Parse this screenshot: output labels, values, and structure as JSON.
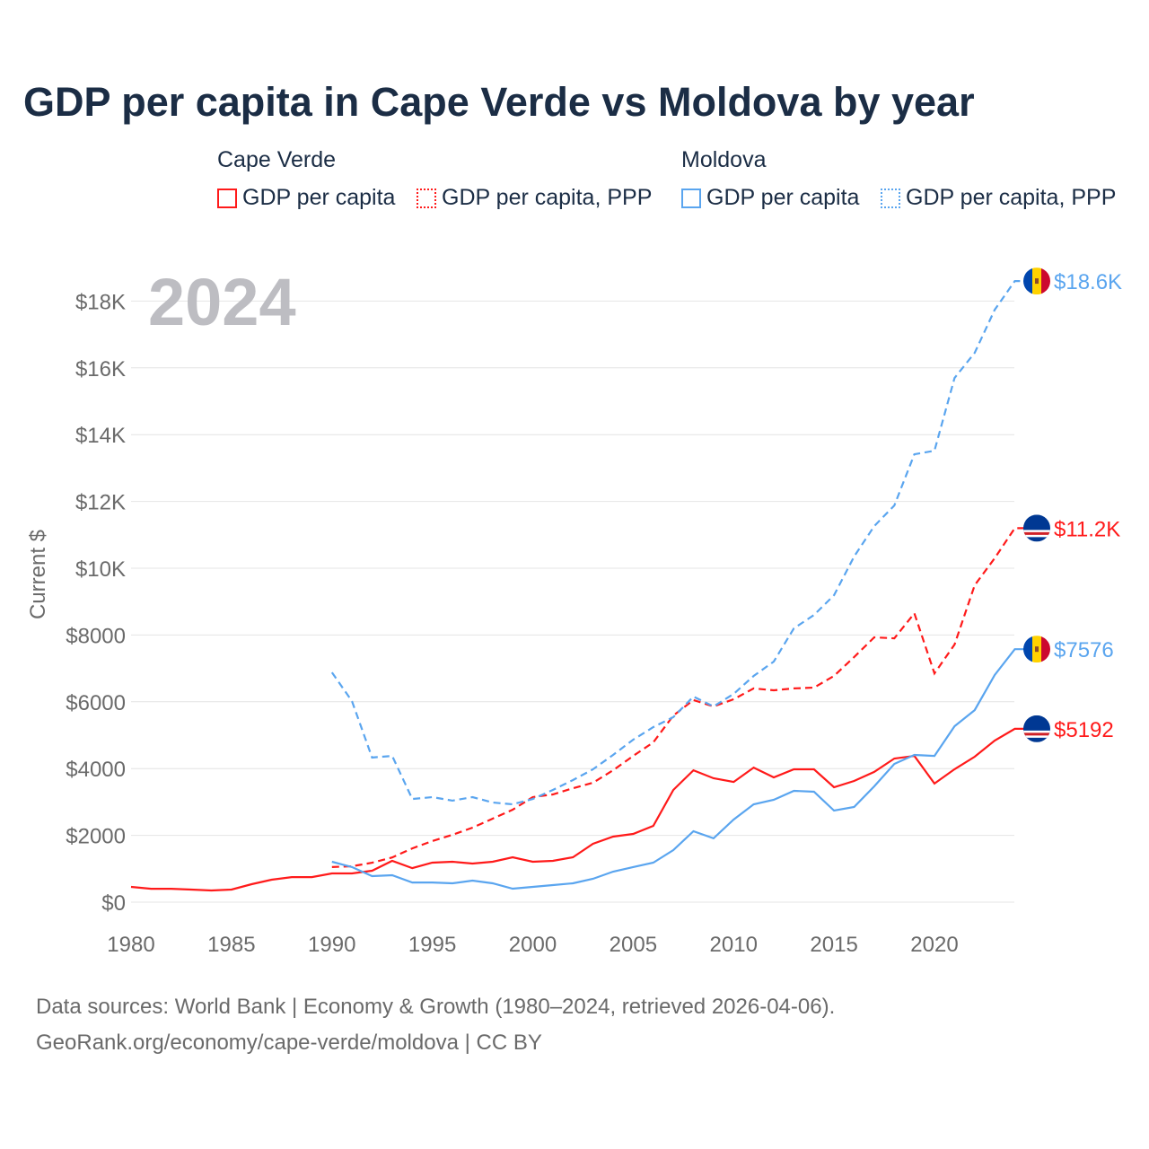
{
  "title": "GDP per capita in Cape Verde vs Moldova by year",
  "legend": {
    "groups": [
      {
        "name": "Cape Verde"
      },
      {
        "name": "Moldova"
      }
    ],
    "items": [
      {
        "label": "GDP per capita",
        "color": "#ff1a1a",
        "style": "solid"
      },
      {
        "label": "GDP per capita, PPP",
        "color": "#ff1a1a",
        "style": "dotted"
      },
      {
        "label": "GDP per capita",
        "color": "#5aa5ef",
        "style": "solid"
      },
      {
        "label": "GDP per capita, PPP",
        "color": "#5aa5ef",
        "style": "dotted"
      }
    ]
  },
  "source_line1": "Data sources: World Bank | Economy & Growth (1980–2024, retrieved 2026-04-06).",
  "source_line2": "GeoRank.org/economy/cape-verde/moldova | CC BY",
  "chart_data": {
    "type": "line",
    "title": "GDP per capita in Cape Verde vs Moldova by year",
    "year_label": "2024",
    "ylabel": "Current $",
    "xlabel": "",
    "xlim": [
      1980,
      2024
    ],
    "ylim": [
      0,
      18600
    ],
    "xticks": [
      1980,
      1985,
      1990,
      1995,
      2000,
      2005,
      2010,
      2015,
      2020
    ],
    "xtick_labels": [
      "1980",
      "1985",
      "1990",
      "1995",
      "2000",
      "2005",
      "2010",
      "2015",
      "2020"
    ],
    "yticks": [
      0,
      2000,
      4000,
      6000,
      8000,
      10000,
      12000,
      14000,
      16000,
      18000
    ],
    "ytick_labels": [
      "$0",
      "$2000",
      "$4000",
      "$6000",
      "$8000",
      "$10K",
      "$12K",
      "$14K",
      "$16K",
      "$18K"
    ],
    "grid": true,
    "series": [
      {
        "name": "Cape Verde GDP per capita",
        "country": "Cape Verde",
        "color": "#ff1a1a",
        "dash": false,
        "start": 1980,
        "end_label": "$5192",
        "values": [
          457,
          400,
          400,
          376,
          350,
          376,
          537,
          672,
          750,
          750,
          860,
          860,
          940,
          1236,
          1020,
          1183,
          1210,
          1156,
          1210,
          1344,
          1210,
          1236,
          1344,
          1747,
          1962,
          2043,
          2285,
          3360,
          3950,
          3710,
          3600,
          4030,
          3737,
          3978,
          3978,
          3440,
          3630,
          3900,
          4300,
          4380,
          3550,
          3980,
          4355,
          4840,
          5192
        ]
      },
      {
        "name": "Cape Verde GDP per capita, PPP",
        "country": "Cape Verde",
        "color": "#ff1a1a",
        "dash": true,
        "start": 1990,
        "end_label": "$11.2K",
        "values": [
          1050,
          1075,
          1180,
          1340,
          1610,
          1830,
          2016,
          2230,
          2500,
          2770,
          3145,
          3225,
          3410,
          3575,
          3950,
          4380,
          4785,
          5590,
          6050,
          5860,
          6075,
          6400,
          6344,
          6400,
          6425,
          6775,
          7340,
          7930,
          7900,
          8650,
          6850,
          7715,
          9490,
          10300,
          11200
        ]
      },
      {
        "name": "Moldova GDP per capita",
        "country": "Moldova",
        "color": "#5aa5ef",
        "dash": false,
        "start": 1990,
        "end_label": "$7576",
        "values": [
          1210,
          1050,
          780,
          806,
          590,
          590,
          565,
          645,
          565,
          403,
          457,
          510,
          565,
          700,
          914,
          1050,
          1183,
          1560,
          2124,
          1910,
          2473,
          2930,
          3064,
          3333,
          3306,
          2742,
          2850,
          3468,
          4140,
          4409,
          4380,
          5268,
          5750,
          6800,
          7576
        ]
      },
      {
        "name": "Moldova GDP per capita, PPP",
        "country": "Moldova",
        "color": "#5aa5ef",
        "dash": true,
        "start": 1990,
        "end_label": "$18.6K",
        "values": [
          6880,
          6020,
          4330,
          4380,
          3090,
          3145,
          3040,
          3145,
          2985,
          2930,
          3090,
          3360,
          3655,
          3978,
          4409,
          4866,
          5242,
          5540,
          6156,
          5860,
          6236,
          6774,
          7204,
          8200,
          8600,
          9190,
          10350,
          11260,
          11880,
          13410,
          13520,
          15700,
          16450,
          17740,
          18600
        ]
      }
    ]
  }
}
